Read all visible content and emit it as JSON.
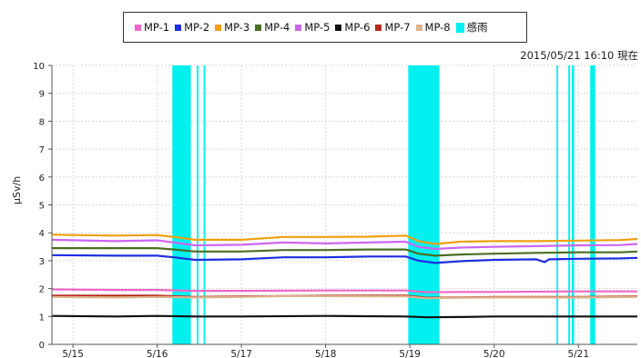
{
  "timestamp": "2015/05/21 16:10 現在",
  "colors": {
    "MP-1": "#ee66c8",
    "MP-2": "#1d2fe0",
    "MP-3": "#f0a010",
    "MP-4": "#4a6e22",
    "MP-5": "#cc66ee",
    "MP-6": "#111111",
    "MP-7": "#b82a1e",
    "MP-8": "#dcb48c",
    "rain": "#00f0f0"
  },
  "chart_data": {
    "type": "line",
    "title": "",
    "xlabel": "",
    "ylabel": "μSv/h",
    "xlim": [
      14.75,
      21.7
    ],
    "ylim": [
      0,
      10
    ],
    "yticks": [
      0,
      1,
      2,
      3,
      4,
      5,
      6,
      7,
      8,
      9,
      10
    ],
    "xticks": [
      {
        "pos": 15,
        "label": "5/15"
      },
      {
        "pos": 16,
        "label": "5/16"
      },
      {
        "pos": 17,
        "label": "5/17"
      },
      {
        "pos": 18,
        "label": "5/18"
      },
      {
        "pos": 19,
        "label": "5/19"
      },
      {
        "pos": 20,
        "label": "5/20"
      },
      {
        "pos": 21,
        "label": "5/21"
      }
    ],
    "grid": true,
    "legend_position": "top-center",
    "legend": [
      "MP-1",
      "MP-2",
      "MP-3",
      "MP-4",
      "MP-5",
      "MP-6",
      "MP-7",
      "MP-8",
      "感雨"
    ],
    "rain_periods": [
      [
        16.18,
        16.4
      ],
      [
        16.47,
        16.49
      ],
      [
        16.55,
        16.57
      ],
      [
        18.98,
        19.35
      ],
      [
        20.74,
        20.76
      ],
      [
        20.88,
        20.9
      ],
      [
        20.92,
        20.95
      ],
      [
        21.14,
        21.2
      ]
    ],
    "series": [
      {
        "name": "MP-3",
        "points": [
          [
            14.75,
            3.93
          ],
          [
            15.5,
            3.9
          ],
          [
            16.0,
            3.92
          ],
          [
            16.2,
            3.85
          ],
          [
            16.45,
            3.75
          ],
          [
            17.0,
            3.75
          ],
          [
            17.5,
            3.85
          ],
          [
            18.0,
            3.85
          ],
          [
            18.5,
            3.86
          ],
          [
            18.95,
            3.9
          ],
          [
            19.1,
            3.7
          ],
          [
            19.3,
            3.6
          ],
          [
            19.6,
            3.68
          ],
          [
            20.0,
            3.7
          ],
          [
            20.5,
            3.7
          ],
          [
            21.0,
            3.72
          ],
          [
            21.5,
            3.74
          ],
          [
            21.7,
            3.78
          ]
        ]
      },
      {
        "name": "MP-5",
        "points": [
          [
            14.75,
            3.75
          ],
          [
            15.5,
            3.7
          ],
          [
            16.0,
            3.73
          ],
          [
            16.2,
            3.65
          ],
          [
            16.45,
            3.55
          ],
          [
            17.0,
            3.57
          ],
          [
            17.5,
            3.65
          ],
          [
            18.0,
            3.62
          ],
          [
            18.5,
            3.65
          ],
          [
            18.95,
            3.68
          ],
          [
            19.1,
            3.5
          ],
          [
            19.3,
            3.42
          ],
          [
            19.6,
            3.47
          ],
          [
            20.0,
            3.5
          ],
          [
            20.5,
            3.52
          ],
          [
            21.0,
            3.55
          ],
          [
            21.5,
            3.56
          ],
          [
            21.7,
            3.6
          ]
        ]
      },
      {
        "name": "MP-4",
        "points": [
          [
            14.75,
            3.45
          ],
          [
            15.5,
            3.45
          ],
          [
            16.0,
            3.45
          ],
          [
            16.2,
            3.4
          ],
          [
            16.45,
            3.33
          ],
          [
            17.0,
            3.33
          ],
          [
            17.5,
            3.38
          ],
          [
            18.0,
            3.38
          ],
          [
            18.5,
            3.4
          ],
          [
            18.95,
            3.4
          ],
          [
            19.1,
            3.25
          ],
          [
            19.3,
            3.18
          ],
          [
            19.6,
            3.22
          ],
          [
            20.0,
            3.25
          ],
          [
            20.5,
            3.28
          ],
          [
            21.0,
            3.3
          ],
          [
            21.5,
            3.3
          ],
          [
            21.7,
            3.33
          ]
        ]
      },
      {
        "name": "MP-2",
        "points": [
          [
            14.75,
            3.2
          ],
          [
            15.5,
            3.18
          ],
          [
            16.0,
            3.18
          ],
          [
            16.2,
            3.12
          ],
          [
            16.45,
            3.03
          ],
          [
            17.0,
            3.05
          ],
          [
            17.5,
            3.12
          ],
          [
            18.0,
            3.12
          ],
          [
            18.5,
            3.15
          ],
          [
            18.95,
            3.15
          ],
          [
            19.1,
            3.0
          ],
          [
            19.3,
            2.92
          ],
          [
            19.6,
            2.98
          ],
          [
            20.0,
            3.03
          ],
          [
            20.5,
            3.05
          ],
          [
            20.6,
            2.95
          ],
          [
            20.65,
            3.05
          ],
          [
            21.0,
            3.07
          ],
          [
            21.5,
            3.08
          ],
          [
            21.7,
            3.1
          ]
        ]
      },
      {
        "name": "MP-1",
        "points": [
          [
            14.75,
            1.97
          ],
          [
            15.5,
            1.95
          ],
          [
            16.0,
            1.95
          ],
          [
            16.45,
            1.92
          ],
          [
            17.0,
            1.92
          ],
          [
            18.0,
            1.93
          ],
          [
            18.95,
            1.93
          ],
          [
            19.2,
            1.87
          ],
          [
            19.6,
            1.88
          ],
          [
            20.0,
            1.88
          ],
          [
            21.0,
            1.9
          ],
          [
            21.7,
            1.9
          ]
        ]
      },
      {
        "name": "MP-7",
        "points": [
          [
            14.75,
            1.75
          ],
          [
            15.5,
            1.75
          ],
          [
            16.0,
            1.75
          ],
          [
            16.45,
            1.7
          ],
          [
            17.0,
            1.72
          ],
          [
            18.0,
            1.75
          ],
          [
            18.95,
            1.75
          ],
          [
            19.2,
            1.67
          ],
          [
            19.6,
            1.68
          ],
          [
            20.0,
            1.7
          ],
          [
            21.0,
            1.7
          ],
          [
            21.7,
            1.72
          ]
        ]
      },
      {
        "name": "MP-8",
        "points": [
          [
            14.75,
            1.7
          ],
          [
            15.5,
            1.68
          ],
          [
            16.0,
            1.7
          ],
          [
            16.45,
            1.68
          ],
          [
            17.0,
            1.7
          ],
          [
            17.5,
            1.73
          ],
          [
            18.0,
            1.73
          ],
          [
            18.95,
            1.72
          ],
          [
            19.2,
            1.65
          ],
          [
            19.6,
            1.67
          ],
          [
            20.0,
            1.68
          ],
          [
            21.0,
            1.68
          ],
          [
            21.7,
            1.7
          ]
        ]
      },
      {
        "name": "MP-6",
        "points": [
          [
            14.75,
            1.02
          ],
          [
            15.5,
            1.0
          ],
          [
            16.0,
            1.02
          ],
          [
            16.45,
            1.0
          ],
          [
            17.0,
            1.0
          ],
          [
            18.0,
            1.02
          ],
          [
            18.95,
            1.0
          ],
          [
            19.2,
            0.97
          ],
          [
            19.6,
            0.98
          ],
          [
            20.0,
            1.0
          ],
          [
            21.0,
            1.0
          ],
          [
            21.7,
            1.0
          ]
        ]
      }
    ]
  }
}
